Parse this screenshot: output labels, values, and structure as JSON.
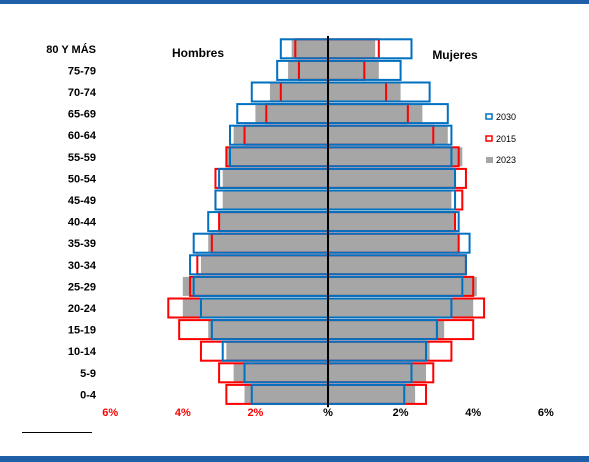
{
  "colors": {
    "frame": "#1f5fa8",
    "y2030": "#0070c0",
    "y2015": "#ff0000",
    "y2023": "#a6a6a6",
    "axis": "#000000",
    "text": "#000000"
  },
  "chart_data": {
    "type": "bar",
    "subtype": "population-pyramid",
    "title": "",
    "left_label": "Hombres",
    "right_label": "Mujeres",
    "categories": [
      "0-4",
      "5-9",
      "10-14",
      "15-19",
      "20-24",
      "25-29",
      "30-34",
      "35-39",
      "40-44",
      "45-49",
      "50-54",
      "55-59",
      "60-64",
      "65-69",
      "70-74",
      "75-79",
      "80 Y MÁS"
    ],
    "xlim": [
      -6,
      6
    ],
    "x_ticks": [
      {
        "value": -6,
        "label": "6%",
        "color": "#ff0000"
      },
      {
        "value": -4,
        "label": "4%",
        "color": "#ff0000"
      },
      {
        "value": -2,
        "label": "2%",
        "color": "#ff0000"
      },
      {
        "value": 0,
        "label": "%",
        "color": "#000000"
      },
      {
        "value": 2,
        "label": "2%",
        "color": "#000000"
      },
      {
        "value": 4,
        "label": "4%",
        "color": "#000000"
      },
      {
        "value": 6,
        "label": "6%",
        "color": "#000000"
      }
    ],
    "legend": {
      "position": "right",
      "items": [
        {
          "label": "2030",
          "style": "outline",
          "color": "#0070c0"
        },
        {
          "label": "2015",
          "style": "outline",
          "color": "#ff0000"
        },
        {
          "label": "2023",
          "style": "fill",
          "color": "#a6a6a6"
        }
      ]
    },
    "series": [
      {
        "name": "2023",
        "style": "fill",
        "hombres": [
          2.3,
          2.6,
          2.8,
          3.3,
          4.0,
          4.0,
          3.5,
          3.3,
          3.0,
          2.9,
          2.9,
          2.8,
          2.6,
          2.0,
          1.6,
          1.1,
          1.0
        ],
        "mujeres": [
          2.4,
          2.7,
          2.8,
          3.2,
          4.0,
          4.1,
          3.8,
          3.6,
          3.5,
          3.4,
          3.5,
          3.7,
          3.3,
          2.6,
          2.0,
          1.4,
          1.3
        ]
      },
      {
        "name": "2015",
        "style": "outline",
        "hombres": [
          2.8,
          3.0,
          3.5,
          4.1,
          4.4,
          3.8,
          3.6,
          3.2,
          3.0,
          3.1,
          3.1,
          2.8,
          2.3,
          1.7,
          1.3,
          0.8,
          0.9
        ],
        "mujeres": [
          2.7,
          2.9,
          3.4,
          4.0,
          4.3,
          4.0,
          3.8,
          3.6,
          3.5,
          3.7,
          3.8,
          3.6,
          2.9,
          2.2,
          1.6,
          1.0,
          1.4
        ]
      },
      {
        "name": "2030",
        "style": "outline",
        "hombres": [
          2.1,
          2.3,
          2.9,
          3.2,
          3.5,
          3.7,
          3.8,
          3.7,
          3.3,
          3.1,
          3.0,
          2.7,
          2.7,
          2.5,
          2.1,
          1.4,
          1.3
        ],
        "mujeres": [
          2.1,
          2.3,
          2.7,
          3.0,
          3.4,
          3.7,
          3.8,
          3.9,
          3.6,
          3.5,
          3.5,
          3.4,
          3.4,
          3.3,
          2.8,
          2.0,
          2.3
        ]
      }
    ]
  }
}
